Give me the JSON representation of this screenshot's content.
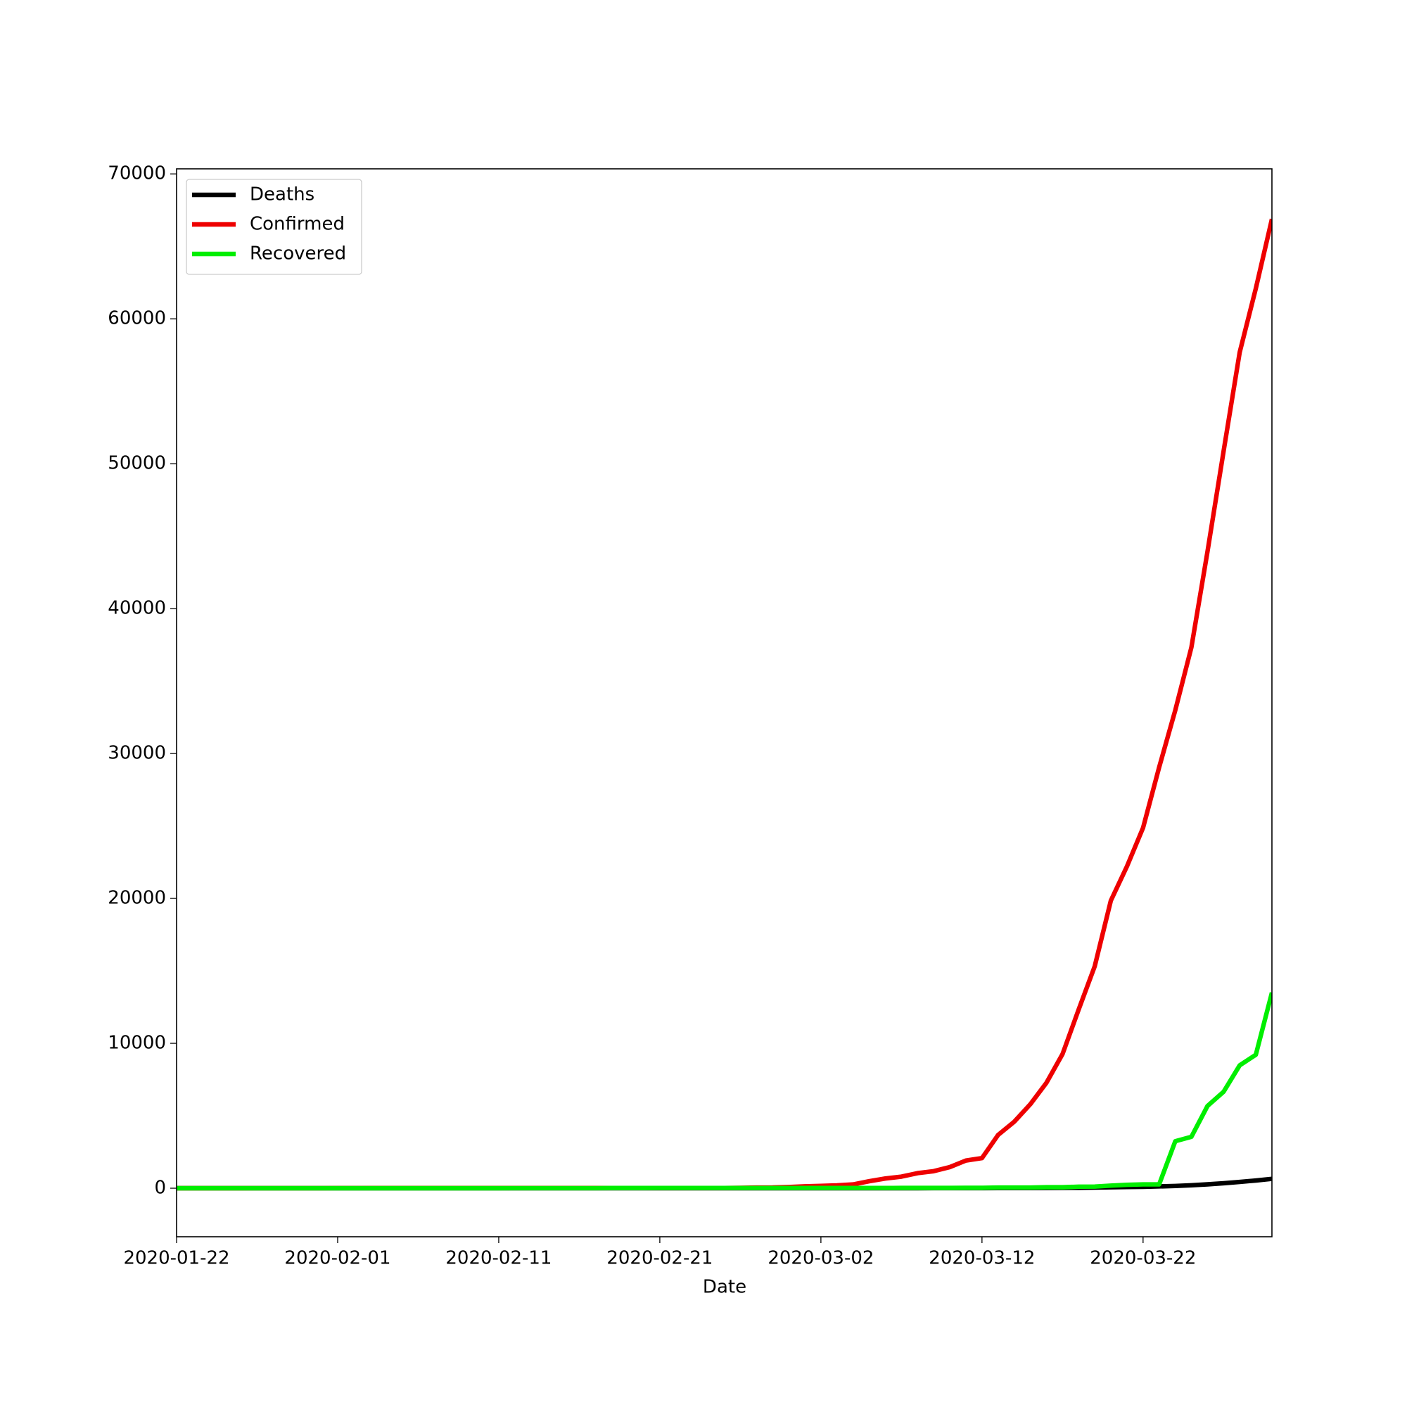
{
  "chart_data": {
    "type": "line",
    "x_label": "Date",
    "x": [
      "2020-01-22",
      "2020-01-23",
      "2020-01-24",
      "2020-01-25",
      "2020-01-26",
      "2020-01-27",
      "2020-01-28",
      "2020-01-29",
      "2020-01-30",
      "2020-01-31",
      "2020-02-01",
      "2020-02-02",
      "2020-02-03",
      "2020-02-04",
      "2020-02-05",
      "2020-02-06",
      "2020-02-07",
      "2020-02-08",
      "2020-02-09",
      "2020-02-10",
      "2020-02-11",
      "2020-02-12",
      "2020-02-13",
      "2020-02-14",
      "2020-02-15",
      "2020-02-16",
      "2020-02-17",
      "2020-02-18",
      "2020-02-19",
      "2020-02-20",
      "2020-02-21",
      "2020-02-22",
      "2020-02-23",
      "2020-02-24",
      "2020-02-25",
      "2020-02-26",
      "2020-02-27",
      "2020-02-28",
      "2020-02-29",
      "2020-03-01",
      "2020-03-02",
      "2020-03-03",
      "2020-03-04",
      "2020-03-05",
      "2020-03-06",
      "2020-03-07",
      "2020-03-08",
      "2020-03-09",
      "2020-03-10",
      "2020-03-11",
      "2020-03-12",
      "2020-03-13",
      "2020-03-14",
      "2020-03-15",
      "2020-03-16",
      "2020-03-17",
      "2020-03-18",
      "2020-03-19",
      "2020-03-20",
      "2020-03-21",
      "2020-03-22",
      "2020-03-23",
      "2020-03-24",
      "2020-03-25",
      "2020-03-26",
      "2020-03-27",
      "2020-03-28",
      "2020-03-29",
      "2020-03-30"
    ],
    "series": [
      {
        "name": "Deaths",
        "color": "#000000",
        "values": [
          0,
          0,
          0,
          0,
          0,
          0,
          0,
          0,
          0,
          0,
          0,
          0,
          0,
          0,
          0,
          0,
          0,
          0,
          0,
          0,
          0,
          0,
          0,
          0,
          0,
          0,
          0,
          0,
          0,
          0,
          0,
          0,
          0,
          0,
          0,
          0,
          0,
          0,
          0,
          0,
          0,
          0,
          0,
          0,
          0,
          0,
          0,
          2,
          2,
          3,
          3,
          7,
          9,
          11,
          17,
          24,
          28,
          44,
          67,
          84,
          94,
          123,
          157,
          206,
          267,
          342,
          433,
          533,
          645
        ]
      },
      {
        "name": "Confirmed",
        "color": "#ee0000",
        "values": [
          0,
          0,
          0,
          0,
          0,
          1,
          4,
          4,
          4,
          5,
          8,
          10,
          12,
          12,
          12,
          12,
          13,
          13,
          14,
          14,
          16,
          16,
          16,
          16,
          16,
          16,
          16,
          16,
          16,
          16,
          16,
          16,
          16,
          16,
          17,
          27,
          46,
          48,
          79,
          130,
          159,
          196,
          262,
          482,
          670,
          799,
          1040,
          1176,
          1457,
          1908,
          2078,
          3675,
          4585,
          5795,
          7272,
          9257,
          12327,
          15320,
          19848,
          22213,
          24873,
          29056,
          32986,
          37323,
          43938,
          50871,
          57695,
          62095,
          66885
        ]
      },
      {
        "name": "Recovered",
        "color": "#00ee00",
        "values": [
          0,
          0,
          0,
          0,
          0,
          0,
          0,
          0,
          0,
          0,
          0,
          0,
          0,
          0,
          0,
          0,
          0,
          0,
          0,
          0,
          0,
          1,
          1,
          1,
          1,
          1,
          1,
          12,
          12,
          12,
          14,
          14,
          14,
          14,
          16,
          16,
          16,
          16,
          16,
          16,
          16,
          16,
          16,
          16,
          17,
          18,
          18,
          18,
          18,
          25,
          25,
          46,
          46,
          46,
          67,
          67,
          105,
          113,
          180,
          233,
          266,
          266,
          3243,
          3547,
          5673,
          6658,
          8481,
          9211,
          13500
        ]
      }
    ],
    "xlim": [
      "2020-01-22",
      "2020-03-30"
    ],
    "xticks": [
      "2020-01-22",
      "2020-02-01",
      "2020-02-11",
      "2020-02-21",
      "2020-03-02",
      "2020-03-12",
      "2020-03-22"
    ],
    "ylim": [
      -3350,
      70350
    ],
    "yticks": [
      0,
      10000,
      20000,
      30000,
      40000,
      50000,
      60000,
      70000
    ],
    "legend": "upper left"
  }
}
